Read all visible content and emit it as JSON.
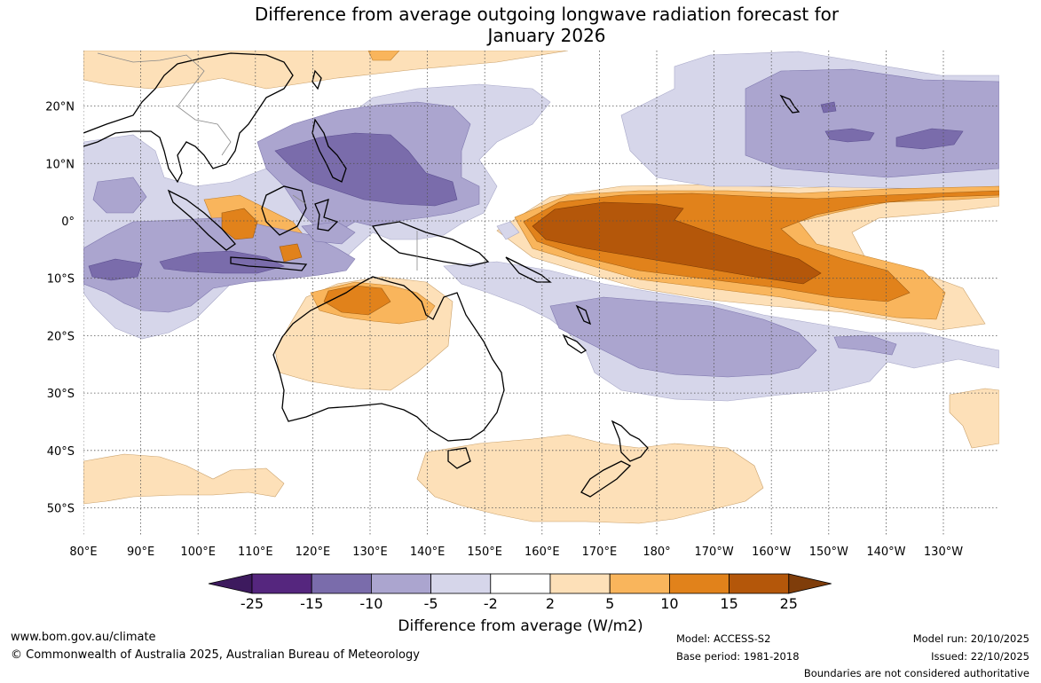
{
  "title_line1": "Difference from average outgoing longwave radiation forecast for",
  "title_line2": "January 2026",
  "lon_labels": [
    "80°E",
    "90°E",
    "100°E",
    "110°E",
    "120°E",
    "130°E",
    "140°E",
    "150°E",
    "160°E",
    "170°E",
    "180°",
    "170°W",
    "160°W",
    "150°W",
    "140°W",
    "130°W"
  ],
  "lat_labels": [
    "20°N",
    "10°N",
    "0°",
    "10°S",
    "20°S",
    "30°S",
    "40°S",
    "50°S"
  ],
  "colorbar": {
    "title": "Difference from average (W/m2)",
    "ticks": [
      "-25",
      "-15",
      "-10",
      "-5",
      "-2",
      "2",
      "5",
      "10",
      "15",
      "25"
    ],
    "colors": [
      "#3d1a5e",
      "#55267e",
      "#7a6cab",
      "#aba5cf",
      "#d6d6ea",
      "#ffffff",
      "#fde0b8",
      "#f9b55c",
      "#e1821b",
      "#b4570a",
      "#7f3d0a"
    ]
  },
  "footer": {
    "url": "www.bom.gov.au/climate",
    "copyright": "© Commonwealth of Australia 2025, Australian Bureau of Meteorology",
    "model": "Model: ACCESS-S2",
    "base_period": "Base period: 1981-2018",
    "model_run": "Model run: 20/10/2025",
    "issued": "Issued: 22/10/2025",
    "disclaimer": "Boundaries are not considered authoritative"
  }
}
